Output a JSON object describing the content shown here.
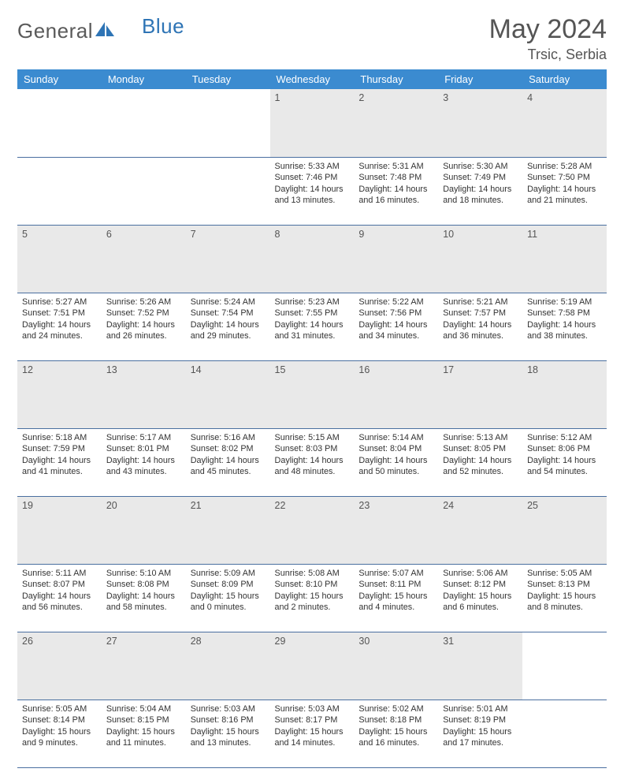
{
  "brand": {
    "part1": "General",
    "part2": "Blue"
  },
  "title": "May 2024",
  "location": "Trsic, Serbia",
  "colors": {
    "header_bg": "#3b8bd0",
    "header_text": "#ffffff",
    "daynum_bg": "#e9e9e9",
    "rule": "#4a6fa0",
    "body_text": "#333333",
    "title_text": "#555555"
  },
  "weekdays": [
    "Sunday",
    "Monday",
    "Tuesday",
    "Wednesday",
    "Thursday",
    "Friday",
    "Saturday"
  ],
  "weeks": [
    {
      "nums": [
        "",
        "",
        "",
        "1",
        "2",
        "3",
        "4"
      ],
      "cells": [
        null,
        null,
        null,
        {
          "sunrise": "5:33 AM",
          "sunset": "7:46 PM",
          "daylight": "14 hours and 13 minutes."
        },
        {
          "sunrise": "5:31 AM",
          "sunset": "7:48 PM",
          "daylight": "14 hours and 16 minutes."
        },
        {
          "sunrise": "5:30 AM",
          "sunset": "7:49 PM",
          "daylight": "14 hours and 18 minutes."
        },
        {
          "sunrise": "5:28 AM",
          "sunset": "7:50 PM",
          "daylight": "14 hours and 21 minutes."
        }
      ]
    },
    {
      "nums": [
        "5",
        "6",
        "7",
        "8",
        "9",
        "10",
        "11"
      ],
      "cells": [
        {
          "sunrise": "5:27 AM",
          "sunset": "7:51 PM",
          "daylight": "14 hours and 24 minutes."
        },
        {
          "sunrise": "5:26 AM",
          "sunset": "7:52 PM",
          "daylight": "14 hours and 26 minutes."
        },
        {
          "sunrise": "5:24 AM",
          "sunset": "7:54 PM",
          "daylight": "14 hours and 29 minutes."
        },
        {
          "sunrise": "5:23 AM",
          "sunset": "7:55 PM",
          "daylight": "14 hours and 31 minutes."
        },
        {
          "sunrise": "5:22 AM",
          "sunset": "7:56 PM",
          "daylight": "14 hours and 34 minutes."
        },
        {
          "sunrise": "5:21 AM",
          "sunset": "7:57 PM",
          "daylight": "14 hours and 36 minutes."
        },
        {
          "sunrise": "5:19 AM",
          "sunset": "7:58 PM",
          "daylight": "14 hours and 38 minutes."
        }
      ]
    },
    {
      "nums": [
        "12",
        "13",
        "14",
        "15",
        "16",
        "17",
        "18"
      ],
      "cells": [
        {
          "sunrise": "5:18 AM",
          "sunset": "7:59 PM",
          "daylight": "14 hours and 41 minutes."
        },
        {
          "sunrise": "5:17 AM",
          "sunset": "8:01 PM",
          "daylight": "14 hours and 43 minutes."
        },
        {
          "sunrise": "5:16 AM",
          "sunset": "8:02 PM",
          "daylight": "14 hours and 45 minutes."
        },
        {
          "sunrise": "5:15 AM",
          "sunset": "8:03 PM",
          "daylight": "14 hours and 48 minutes."
        },
        {
          "sunrise": "5:14 AM",
          "sunset": "8:04 PM",
          "daylight": "14 hours and 50 minutes."
        },
        {
          "sunrise": "5:13 AM",
          "sunset": "8:05 PM",
          "daylight": "14 hours and 52 minutes."
        },
        {
          "sunrise": "5:12 AM",
          "sunset": "8:06 PM",
          "daylight": "14 hours and 54 minutes."
        }
      ]
    },
    {
      "nums": [
        "19",
        "20",
        "21",
        "22",
        "23",
        "24",
        "25"
      ],
      "cells": [
        {
          "sunrise": "5:11 AM",
          "sunset": "8:07 PM",
          "daylight": "14 hours and 56 minutes."
        },
        {
          "sunrise": "5:10 AM",
          "sunset": "8:08 PM",
          "daylight": "14 hours and 58 minutes."
        },
        {
          "sunrise": "5:09 AM",
          "sunset": "8:09 PM",
          "daylight": "15 hours and 0 minutes."
        },
        {
          "sunrise": "5:08 AM",
          "sunset": "8:10 PM",
          "daylight": "15 hours and 2 minutes."
        },
        {
          "sunrise": "5:07 AM",
          "sunset": "8:11 PM",
          "daylight": "15 hours and 4 minutes."
        },
        {
          "sunrise": "5:06 AM",
          "sunset": "8:12 PM",
          "daylight": "15 hours and 6 minutes."
        },
        {
          "sunrise": "5:05 AM",
          "sunset": "8:13 PM",
          "daylight": "15 hours and 8 minutes."
        }
      ]
    },
    {
      "nums": [
        "26",
        "27",
        "28",
        "29",
        "30",
        "31",
        ""
      ],
      "cells": [
        {
          "sunrise": "5:05 AM",
          "sunset": "8:14 PM",
          "daylight": "15 hours and 9 minutes."
        },
        {
          "sunrise": "5:04 AM",
          "sunset": "8:15 PM",
          "daylight": "15 hours and 11 minutes."
        },
        {
          "sunrise": "5:03 AM",
          "sunset": "8:16 PM",
          "daylight": "15 hours and 13 minutes."
        },
        {
          "sunrise": "5:03 AM",
          "sunset": "8:17 PM",
          "daylight": "15 hours and 14 minutes."
        },
        {
          "sunrise": "5:02 AM",
          "sunset": "8:18 PM",
          "daylight": "15 hours and 16 minutes."
        },
        {
          "sunrise": "5:01 AM",
          "sunset": "8:19 PM",
          "daylight": "15 hours and 17 minutes."
        },
        null
      ]
    }
  ],
  "labels": {
    "sunrise": "Sunrise: ",
    "sunset": "Sunset: ",
    "daylight": "Daylight: "
  }
}
